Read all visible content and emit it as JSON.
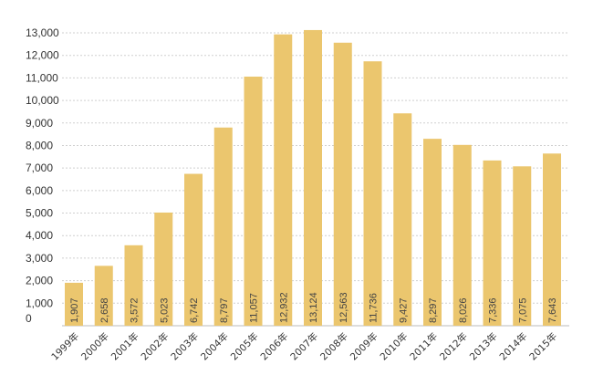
{
  "chart_data": {
    "type": "bar",
    "title": "",
    "xlabel": "",
    "ylabel": "",
    "categories": [
      "1999年",
      "2000年",
      "2001年",
      "2002年",
      "2003年",
      "2004年",
      "2005年",
      "2006年",
      "2007年",
      "2008年",
      "2009年",
      "2010年",
      "2011年",
      "2012年",
      "2013年",
      "2014年",
      "2015年"
    ],
    "values": [
      1907,
      2658,
      3572,
      5023,
      6742,
      8797,
      11057,
      12932,
      13124,
      12563,
      11736,
      9427,
      8297,
      8026,
      7336,
      7075,
      7643
    ],
    "value_labels": [
      "1,907",
      "2,658",
      "3,572",
      "5,023",
      "6,742",
      "8,797",
      "11,057",
      "12,932",
      "13,124",
      "12,563",
      "11,736",
      "9,427",
      "8,297",
      "8,026",
      "7,336",
      "7,075",
      "7,643"
    ],
    "ylim": [
      0,
      13000
    ],
    "y_ticks": [
      0,
      1000,
      2000,
      3000,
      4000,
      5000,
      6000,
      7000,
      8000,
      9000,
      10000,
      11000,
      12000,
      13000
    ],
    "y_tick_labels": [
      "0",
      "1,000",
      "2,000",
      "3,000",
      "4,000",
      "5,000",
      "6,000",
      "7,000",
      "8,000",
      "9,000",
      "10,000",
      "11,000",
      "12,000",
      "13,000"
    ],
    "grid": true,
    "legend": "none",
    "bar_color": "#ebc66e"
  }
}
